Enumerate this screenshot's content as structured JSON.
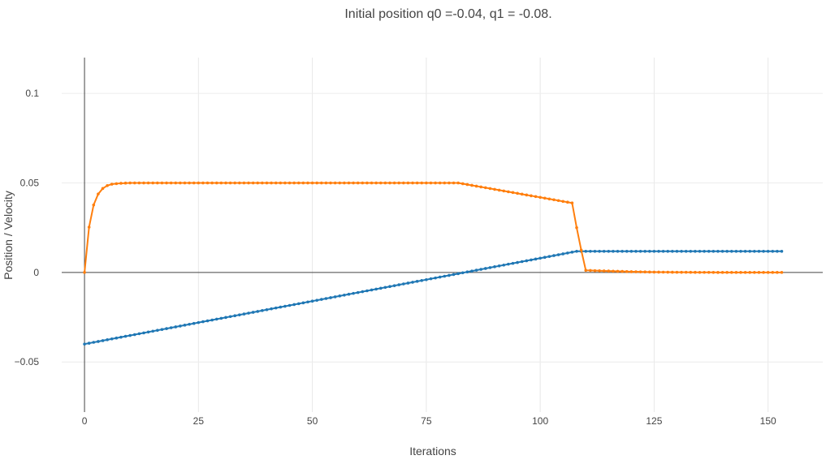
{
  "chart_data": {
    "type": "line",
    "title": "Initial position q0 =-0.04, q1 = -0.08.",
    "xlabel": "Iterations",
    "ylabel": "Position / Velocity",
    "xlim": [
      -5,
      162
    ],
    "ylim": [
      -0.078,
      0.12
    ],
    "xticks": [
      0,
      25,
      50,
      75,
      100,
      125,
      150
    ],
    "xtick_labels": [
      "0",
      "25",
      "50",
      "75",
      "100",
      "125",
      "150"
    ],
    "yticks": [
      -0.05,
      0,
      0.05,
      0.1
    ],
    "ytick_labels": [
      "−0.05",
      "0",
      "0.05",
      "0.1"
    ],
    "grid": true,
    "legend": "none",
    "series_colors": [
      "#1f77b4",
      "#ff7f0e"
    ],
    "series": [
      {
        "description": "position",
        "color": "#1f77b4",
        "piecewise": [
          {
            "x_from": 0,
            "x_to": 108,
            "y_from": -0.04,
            "y_to": 0.0118
          },
          {
            "x_from": 108,
            "x_to": 153,
            "y_from": 0.0118,
            "y_to": 0.0118
          }
        ]
      },
      {
        "description": "velocity",
        "color": "#ff7f0e",
        "points": [
          [
            0,
            0.0
          ],
          [
            1,
            0.0253
          ],
          [
            2,
            0.0377
          ],
          [
            3,
            0.0438
          ],
          [
            4,
            0.0469
          ],
          [
            5,
            0.0485
          ],
          [
            6,
            0.0493
          ],
          [
            7,
            0.0496
          ],
          [
            8,
            0.0498
          ],
          [
            9,
            0.0499
          ],
          [
            10,
            0.05
          ]
        ],
        "piecewise": [
          {
            "x_from": 10,
            "x_to": 82,
            "y_from": 0.05,
            "y_to": 0.05
          },
          {
            "x_from": 82,
            "x_to": 107,
            "y_from": 0.05,
            "y_to": 0.0388
          }
        ],
        "tail_points": [
          [
            108,
            0.025
          ],
          [
            109,
            0.0125
          ],
          [
            110,
            0.0012
          ],
          [
            111,
            0.0011
          ],
          [
            112,
            0.001
          ],
          [
            115,
            0.0008
          ],
          [
            120,
            0.0004
          ],
          [
            125,
            0.0002
          ],
          [
            130,
            0.0001
          ],
          [
            140,
            0.0
          ],
          [
            153,
            0.0
          ]
        ]
      }
    ]
  }
}
